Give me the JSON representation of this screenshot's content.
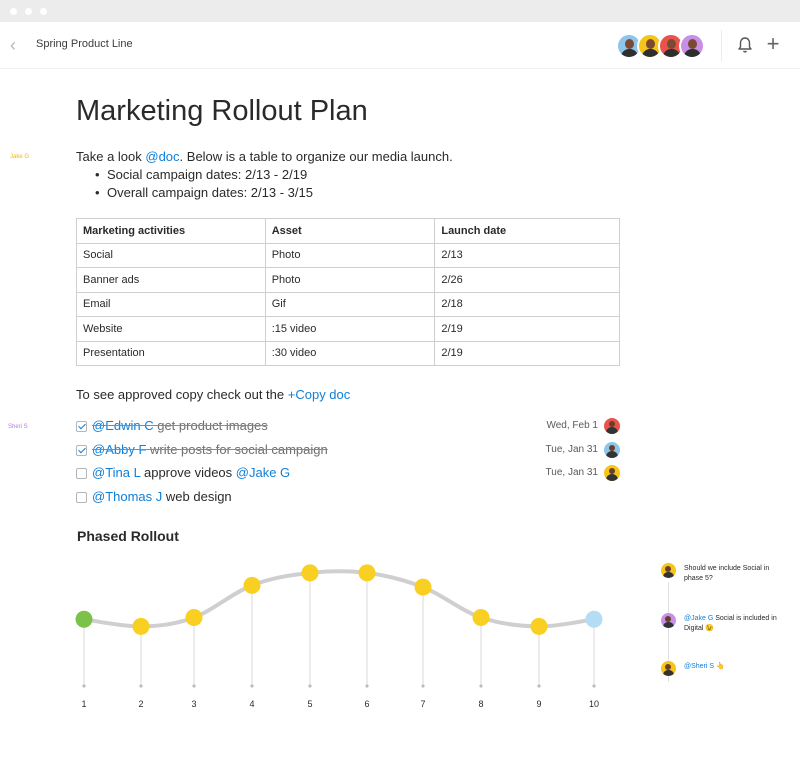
{
  "topbar": {
    "title": "Spring Product Line",
    "avatar_colors": [
      "#8fc5e8",
      "#f5c518",
      "#e8534b",
      "#c98fe6"
    ]
  },
  "author_tags": [
    {
      "name": "Jake G",
      "color": "#f2b705"
    },
    {
      "name": "Sheri S",
      "color": "#b57ce0"
    }
  ],
  "doc": {
    "title": "Marketing Rollout Plan",
    "intro_prefix": "Take a look ",
    "intro_mention": "@doc",
    "intro_suffix": ". Below is a table to organize our media launch.",
    "bullets": [
      "Social campaign dates: 2/13 - 2/19",
      "Overall campaign dates: 2/13 - 3/15"
    ],
    "table": {
      "headers": [
        "Marketing activities",
        "Asset",
        "Launch date"
      ],
      "rows": [
        [
          "Social",
          "Photo",
          "2/13"
        ],
        [
          "Banner ads",
          "Photo",
          "2/26"
        ],
        [
          "Email",
          "Gif",
          "2/18"
        ],
        [
          "Website",
          ":15 video",
          "2/19"
        ],
        [
          "Presentation",
          ":30 video",
          "2/19"
        ]
      ]
    },
    "copy_prefix": "To see approved copy check out the ",
    "copy_link": "+Copy doc",
    "tasks": [
      {
        "done": true,
        "mention": "@Edwin C",
        "text": " get product images",
        "mention2": "",
        "due": "Wed, Feb 1",
        "avatar_color": "#e8534b"
      },
      {
        "done": true,
        "mention": "@Abby F",
        "text": " write posts for social campaign",
        "mention2": "",
        "due": "Tue, Jan 31",
        "avatar_color": "#8fc5e8"
      },
      {
        "done": false,
        "mention": "@Tina L",
        "text": " approve videos ",
        "mention2": "@Jake G",
        "due": "Tue, Jan 31",
        "avatar_color": "#f5c518"
      },
      {
        "done": false,
        "mention": "@Thomas J",
        "text": " web design",
        "mention2": "",
        "due": "",
        "avatar_color": ""
      }
    ],
    "section_title": "Phased Rollout"
  },
  "chart_data": {
    "type": "line",
    "x": [
      1,
      2,
      3,
      4,
      5,
      6,
      7,
      8,
      9,
      10
    ],
    "y": [
      3.4,
      3.0,
      3.5,
      5.3,
      6.0,
      6.0,
      5.2,
      3.5,
      3.0,
      3.4
    ],
    "point_colors": [
      "#7cc24a",
      "#f9cf22",
      "#f9cf22",
      "#f9cf22",
      "#f9cf22",
      "#f9cf22",
      "#f9cf22",
      "#f9cf22",
      "#f9cf22",
      "#b5dcf5"
    ],
    "ylim": [
      0,
      7
    ],
    "xlabel": "",
    "ylabel": "",
    "grid": false
  },
  "comments": [
    {
      "mention": "",
      "text": "Should we include Social in phase 5?",
      "avatar_color": "#f5c518"
    },
    {
      "mention": "@Jake G",
      "text": " Social is included in Digital 😉",
      "avatar_color": "#c98fe6"
    },
    {
      "mention": "@Sheri S",
      "text": " 👆",
      "avatar_color": "#f5c518"
    }
  ]
}
